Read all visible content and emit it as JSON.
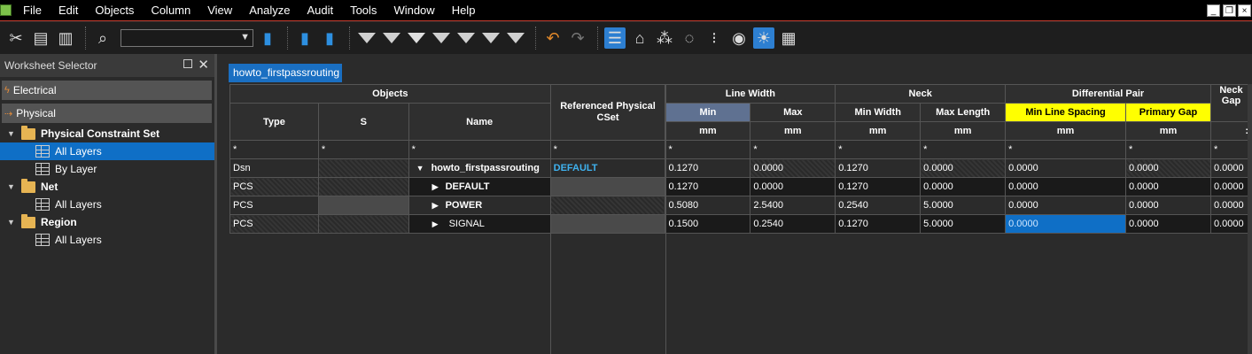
{
  "menu": [
    "File",
    "Edit",
    "Objects",
    "Column",
    "View",
    "Analyze",
    "Audit",
    "Tools",
    "Window",
    "Help"
  ],
  "window_controls": [
    "_",
    "❐",
    "×"
  ],
  "toolbar": {
    "icons": [
      "scissors-icon",
      "copy-icon",
      "paste-icon",
      "find-icon",
      "bookmark-icon",
      "next-bookmark-icon",
      "prev-bookmark-icon",
      "filter-icon",
      "filter-2-icon",
      "filter-error-icon",
      "filter-4-icon",
      "filter-5-icon",
      "filter-6-icon",
      "filter-7-icon",
      "undo-icon",
      "redo-icon",
      "worksheet-icon",
      "tag-icon",
      "nets-icon",
      "shapes-icon",
      "grid-dots-icon",
      "eye-icon",
      "sun-icon",
      "report-icon"
    ],
    "combo_value": ""
  },
  "panel": {
    "title": "Worksheet Selector",
    "tabs": [
      "Electrical",
      "Physical"
    ],
    "tree": [
      {
        "label": "Physical Constraint Set",
        "level": 1,
        "type": "folder"
      },
      {
        "label": "All Layers",
        "level": 2,
        "type": "sheet",
        "selected": true
      },
      {
        "label": "By Layer",
        "level": 2,
        "type": "sheet"
      },
      {
        "label": "Net",
        "level": 1,
        "type": "folder"
      },
      {
        "label": "All Layers",
        "level": 2,
        "type": "sheet"
      },
      {
        "label": "Region",
        "level": 1,
        "type": "folder"
      },
      {
        "label": "All Layers",
        "level": 2,
        "type": "sheet"
      }
    ]
  },
  "worksheet_tab": "howto_firstpassrouting",
  "grid": {
    "group_headers": {
      "objects": "Objects",
      "ref_cset": "Referenced Physical CSet",
      "line_width": "Line Width",
      "neck": "Neck",
      "diff_pair": "Differential Pair",
      "neck_gap": "Neck Gap"
    },
    "col_headers": {
      "type": "Type",
      "s": "S",
      "name": "Name",
      "lw_min": "Min",
      "lw_max": "Max",
      "neck_min": "Min Width",
      "neck_max": "Max Length",
      "dp_min": "Min Line Spacing",
      "dp_gap": "Primary Gap"
    },
    "unit": "mm",
    "filter": "*",
    "rows": [
      {
        "type": "Dsn",
        "name": "howto_firstpassrouting",
        "cset": "DEFAULT",
        "lw_min": "0.1270",
        "lw_max": "0.0000",
        "neck_min": "0.1270",
        "neck_max": "0.0000",
        "dp_min": "0.0000",
        "dp_gap": "0.0000",
        "neck_gap": "0.0000"
      },
      {
        "type": "PCS",
        "name": "DEFAULT",
        "cset": "",
        "lw_min": "0.1270",
        "lw_max": "0.0000",
        "neck_min": "0.1270",
        "neck_max": "0.0000",
        "dp_min": "0.0000",
        "dp_gap": "0.0000",
        "neck_gap": "0.0000"
      },
      {
        "type": "PCS",
        "name": "POWER",
        "cset": "",
        "lw_min": "0.5080",
        "lw_max": "2.5400",
        "neck_min": "0.2540",
        "neck_max": "5.0000",
        "dp_min": "0.0000",
        "dp_gap": "0.0000",
        "neck_gap": "0.0000"
      },
      {
        "type": "PCS",
        "name": "SIGNAL",
        "cset": "",
        "lw_min": "0.1500",
        "lw_max": "0.2540",
        "neck_min": "0.1270",
        "neck_max": "5.0000",
        "dp_min": "0.0000",
        "dp_gap": "0.0000",
        "neck_gap": "0.0000"
      }
    ]
  }
}
